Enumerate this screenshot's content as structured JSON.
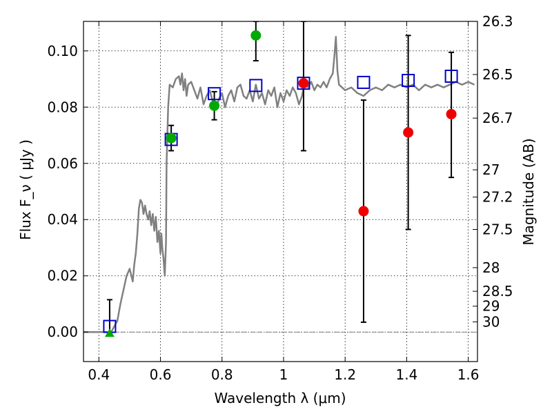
{
  "chart_data": {
    "type": "scatter",
    "xlabel": "Wavelength  λ (μm)",
    "ylabel": "Flux  F_ν  ( μJy )",
    "y2label": "Magnitude (AB)",
    "xlim": [
      0.35,
      1.63
    ],
    "ylim": [
      -0.0105,
      0.1105
    ],
    "grid": true,
    "x_ticks": [
      0.4,
      0.6,
      0.8,
      1.0,
      1.2,
      1.4,
      1.6
    ],
    "x_tick_labels": [
      "0.4",
      "0.6",
      "0.8",
      "1",
      "1.2",
      "1.4",
      "1.6"
    ],
    "y_ticks": [
      0.0,
      0.02,
      0.04,
      0.06,
      0.08,
      0.1
    ],
    "y_tick_labels": [
      "0.00",
      "0.02",
      "0.04",
      "0.06",
      "0.08",
      "0.10"
    ],
    "y2_ticks": [
      {
        "label": "26.3",
        "flux": 0.1105
      },
      {
        "label": "26.5",
        "flux": 0.0916
      },
      {
        "label": "26.7",
        "flux": 0.0761
      },
      {
        "label": "27",
        "flux": 0.0577
      },
      {
        "label": "27.2",
        "flux": 0.048
      },
      {
        "label": "27.5",
        "flux": 0.0365
      },
      {
        "label": "28",
        "flux": 0.0229
      },
      {
        "label": "28.5",
        "flux": 0.0145
      },
      {
        "label": "29",
        "flux": 0.0092
      },
      {
        "label": "30",
        "flux": 0.0036
      }
    ],
    "colors": {
      "model": "#808080",
      "green": "#00aa00",
      "red": "#ee0000",
      "blue": "#0000cc",
      "zero_line": "#555555"
    },
    "series": [
      {
        "kind": "line",
        "color": "#808080",
        "x": [
          0.35,
          0.44,
          0.46,
          0.47,
          0.48,
          0.49,
          0.5,
          0.51,
          0.515,
          0.52,
          0.525,
          0.53,
          0.535,
          0.54,
          0.545,
          0.55,
          0.555,
          0.56,
          0.565,
          0.57,
          0.575,
          0.58,
          0.585,
          0.59,
          0.595,
          0.6,
          0.603,
          0.606,
          0.61,
          0.614,
          0.618,
          0.62,
          0.625,
          0.63,
          0.64,
          0.65,
          0.66,
          0.665,
          0.67,
          0.675,
          0.68,
          0.685,
          0.69,
          0.7,
          0.71,
          0.72,
          0.73,
          0.74,
          0.75,
          0.76,
          0.77,
          0.78,
          0.79,
          0.8,
          0.81,
          0.82,
          0.83,
          0.84,
          0.85,
          0.86,
          0.87,
          0.88,
          0.89,
          0.9,
          0.91,
          0.92,
          0.93,
          0.94,
          0.95,
          0.96,
          0.97,
          0.98,
          0.99,
          1.0,
          1.01,
          1.02,
          1.03,
          1.04,
          1.05,
          1.06,
          1.07,
          1.08,
          1.09,
          1.1,
          1.11,
          1.12,
          1.13,
          1.14,
          1.15,
          1.16,
          1.165,
          1.17,
          1.175,
          1.18,
          1.19,
          1.2,
          1.22,
          1.24,
          1.26,
          1.28,
          1.3,
          1.32,
          1.34,
          1.36,
          1.38,
          1.4,
          1.42,
          1.44,
          1.46,
          1.48,
          1.5,
          1.52,
          1.54,
          1.56,
          1.58,
          1.6,
          1.62
        ],
        "y": [
          0.0,
          0.0,
          0.004,
          0.01,
          0.015,
          0.02,
          0.0225,
          0.018,
          0.024,
          0.028,
          0.035,
          0.044,
          0.047,
          0.046,
          0.042,
          0.045,
          0.042,
          0.04,
          0.043,
          0.038,
          0.042,
          0.036,
          0.041,
          0.032,
          0.036,
          0.028,
          0.035,
          0.03,
          0.026,
          0.02,
          0.032,
          0.06,
          0.08,
          0.088,
          0.087,
          0.09,
          0.091,
          0.088,
          0.092,
          0.086,
          0.09,
          0.084,
          0.088,
          0.089,
          0.086,
          0.083,
          0.087,
          0.081,
          0.084,
          0.086,
          0.082,
          0.079,
          0.083,
          0.085,
          0.08,
          0.084,
          0.086,
          0.082,
          0.087,
          0.088,
          0.084,
          0.083,
          0.086,
          0.082,
          0.088,
          0.083,
          0.085,
          0.081,
          0.086,
          0.084,
          0.087,
          0.08,
          0.085,
          0.082,
          0.086,
          0.084,
          0.087,
          0.085,
          0.081,
          0.084,
          0.09,
          0.087,
          0.089,
          0.086,
          0.088,
          0.087,
          0.089,
          0.087,
          0.09,
          0.092,
          0.098,
          0.105,
          0.093,
          0.088,
          0.087,
          0.086,
          0.087,
          0.085,
          0.084,
          0.086,
          0.087,
          0.086,
          0.088,
          0.087,
          0.088,
          0.087,
          0.088,
          0.086,
          0.088,
          0.087,
          0.088,
          0.087,
          0.088,
          0.089,
          0.088,
          0.089,
          0.088
        ]
      },
      {
        "kind": "points",
        "marker": "circle",
        "color": "#00aa00",
        "points": [
          {
            "x": 0.635,
            "y": 0.069,
            "lo": 0.0645,
            "hi": 0.0735
          },
          {
            "x": 0.775,
            "y": 0.0805,
            "lo": 0.0755,
            "hi": 0.0855
          },
          {
            "x": 0.91,
            "y": 0.1055,
            "lo": 0.0965,
            "hi": 0.1105
          }
        ]
      },
      {
        "kind": "points",
        "marker": "triangle",
        "color": "#00aa00",
        "points": [
          {
            "x": 0.435,
            "y": -0.0005
          }
        ]
      },
      {
        "kind": "points",
        "marker": "circle",
        "color": "#ee0000",
        "points": [
          {
            "x": 1.065,
            "y": 0.0885,
            "lo": 0.0645,
            "hi": 0.1105
          },
          {
            "x": 1.26,
            "y": 0.043,
            "lo": 0.0035,
            "hi": 0.0825
          },
          {
            "x": 1.405,
            "y": 0.071,
            "lo": 0.0365,
            "hi": 0.1055
          },
          {
            "x": 1.545,
            "y": 0.0775,
            "lo": 0.055,
            "hi": 0.0995
          }
        ]
      },
      {
        "kind": "points",
        "marker": "square",
        "color": "#0000cc",
        "points": [
          {
            "x": 0.435,
            "y": 0.002,
            "lo": -0.001,
            "hi": 0.0115
          },
          {
            "x": 0.635,
            "y": 0.0685
          },
          {
            "x": 0.775,
            "y": 0.0848
          },
          {
            "x": 0.91,
            "y": 0.0877
          },
          {
            "x": 1.065,
            "y": 0.0885
          },
          {
            "x": 1.26,
            "y": 0.0888
          },
          {
            "x": 1.405,
            "y": 0.0895
          },
          {
            "x": 1.545,
            "y": 0.091
          }
        ]
      }
    ]
  }
}
